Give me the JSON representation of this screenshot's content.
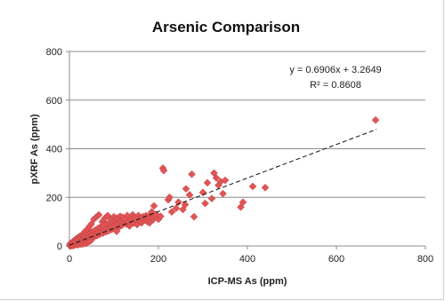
{
  "chart_data": {
    "type": "scatter",
    "title": "Arsenic Comparison",
    "xlabel": "ICP-MS As (ppm)",
    "ylabel": "pXRF As (ppm)",
    "xlim": [
      0,
      800
    ],
    "ylim": [
      0,
      800
    ],
    "xticks": [
      "0",
      "200",
      "400",
      "600",
      "800"
    ],
    "yticks": [
      "0",
      "200",
      "400",
      "600",
      "800"
    ],
    "grid": "horizontal",
    "legend": "none",
    "trendline": {
      "slope": 0.6906,
      "intercept": 3.2649,
      "equation_label": "y = 0.6906x + 3.2649",
      "r2_label": "R² = 0.8608",
      "x_range": [
        0,
        690
      ]
    },
    "marker_color": "#e05555",
    "series": [
      {
        "points": [
          [
            2,
            5
          ],
          [
            3,
            8
          ],
          [
            4,
            2
          ],
          [
            5,
            12
          ],
          [
            6,
            4
          ],
          [
            7,
            15
          ],
          [
            8,
            6
          ],
          [
            9,
            20
          ],
          [
            10,
            9
          ],
          [
            11,
            3
          ],
          [
            12,
            18
          ],
          [
            13,
            25
          ],
          [
            14,
            10
          ],
          [
            15,
            7
          ],
          [
            16,
            30
          ],
          [
            17,
            14
          ],
          [
            18,
            22
          ],
          [
            19,
            5
          ],
          [
            20,
            35
          ],
          [
            21,
            16
          ],
          [
            22,
            28
          ],
          [
            23,
            12
          ],
          [
            24,
            40
          ],
          [
            25,
            20
          ],
          [
            26,
            8
          ],
          [
            27,
            33
          ],
          [
            28,
            45
          ],
          [
            29,
            18
          ],
          [
            30,
            25
          ],
          [
            31,
            50
          ],
          [
            32,
            15
          ],
          [
            33,
            38
          ],
          [
            34,
            22
          ],
          [
            35,
            60
          ],
          [
            36,
            28
          ],
          [
            37,
            42
          ],
          [
            38,
            12
          ],
          [
            39,
            55
          ],
          [
            40,
            30
          ],
          [
            41,
            70
          ],
          [
            42,
            20
          ],
          [
            43,
            48
          ],
          [
            44,
            35
          ],
          [
            45,
            80
          ],
          [
            46,
            25
          ],
          [
            47,
            52
          ],
          [
            48,
            40
          ],
          [
            49,
            90
          ],
          [
            50,
            32
          ],
          [
            52,
            58
          ],
          [
            54,
            45
          ],
          [
            55,
            110
          ],
          [
            56,
            38
          ],
          [
            58,
            65
          ],
          [
            60,
            50
          ],
          [
            61,
            120
          ],
          [
            62,
            42
          ],
          [
            64,
            72
          ],
          [
            65,
            55
          ],
          [
            66,
            128
          ],
          [
            68,
            48
          ],
          [
            70,
            78
          ],
          [
            72,
            60
          ],
          [
            74,
            100
          ],
          [
            75,
            52
          ],
          [
            76,
            85
          ],
          [
            78,
            65
          ],
          [
            80,
            115
          ],
          [
            82,
            58
          ],
          [
            84,
            90
          ],
          [
            85,
            70
          ],
          [
            86,
            125
          ],
          [
            88,
            62
          ],
          [
            90,
            95
          ],
          [
            92,
            75
          ],
          [
            94,
            110
          ],
          [
            95,
            68
          ],
          [
            96,
            100
          ],
          [
            98,
            80
          ],
          [
            100,
            120
          ],
          [
            102,
            72
          ],
          [
            104,
            105
          ],
          [
            105,
            88
          ],
          [
            106,
            60
          ],
          [
            108,
            115
          ],
          [
            110,
            92
          ],
          [
            112,
            78
          ],
          [
            114,
            122
          ],
          [
            115,
            98
          ],
          [
            118,
            85
          ],
          [
            120,
            118
          ],
          [
            122,
            95
          ],
          [
            125,
            108
          ],
          [
            128,
            90
          ],
          [
            130,
            125
          ],
          [
            132,
            100
          ],
          [
            135,
            82
          ],
          [
            138,
            115
          ],
          [
            140,
            105
          ],
          [
            142,
            128
          ],
          [
            145,
            95
          ],
          [
            148,
            118
          ],
          [
            150,
            110
          ],
          [
            152,
            88
          ],
          [
            155,
            125
          ],
          [
            158,
            102
          ],
          [
            160,
            115
          ],
          [
            162,
            95
          ],
          [
            165,
            120
          ],
          [
            168,
            105
          ],
          [
            170,
            112
          ],
          [
            172,
            125
          ],
          [
            175,
            100
          ],
          [
            178,
            118
          ],
          [
            180,
            95
          ],
          [
            182,
            130
          ],
          [
            185,
            115
          ],
          [
            188,
            108
          ],
          [
            190,
            125
          ],
          [
            195,
            130
          ],
          [
            200,
            110
          ],
          [
            205,
            122
          ],
          [
            185,
            140
          ],
          [
            190,
            165
          ],
          [
            210,
            320
          ],
          [
            212,
            310
          ],
          [
            222,
            190
          ],
          [
            225,
            200
          ],
          [
            230,
            140
          ],
          [
            240,
            155
          ],
          [
            245,
            180
          ],
          [
            255,
            150
          ],
          [
            260,
            170
          ],
          [
            262,
            235
          ],
          [
            270,
            210
          ],
          [
            275,
            295
          ],
          [
            280,
            120
          ],
          [
            300,
            220
          ],
          [
            305,
            175
          ],
          [
            310,
            260
          ],
          [
            320,
            195
          ],
          [
            325,
            300
          ],
          [
            330,
            280
          ],
          [
            335,
            250
          ],
          [
            340,
            265
          ],
          [
            345,
            215
          ],
          [
            350,
            270
          ],
          [
            385,
            160
          ],
          [
            390,
            180
          ],
          [
            412,
            245
          ],
          [
            440,
            240
          ],
          [
            688,
            518
          ],
          [
            1,
            1
          ],
          [
            2,
            10
          ],
          [
            3,
            0
          ],
          [
            4,
            6
          ],
          [
            5,
            3
          ],
          [
            6,
            9
          ],
          [
            7,
            1
          ],
          [
            8,
            12
          ],
          [
            9,
            4
          ],
          [
            10,
            14
          ],
          [
            12,
            6
          ],
          [
            14,
            18
          ],
          [
            16,
            8
          ],
          [
            18,
            12
          ],
          [
            20,
            5
          ],
          [
            22,
            14
          ],
          [
            24,
            9
          ],
          [
            26,
            16
          ],
          [
            28,
            11
          ],
          [
            30,
            8
          ],
          [
            32,
            20
          ],
          [
            34,
            14
          ],
          [
            36,
            10
          ],
          [
            38,
            24
          ],
          [
            40,
            15
          ],
          [
            42,
            32
          ],
          [
            44,
            18
          ],
          [
            46,
            26
          ],
          [
            48,
            22
          ],
          [
            50,
            40
          ]
        ]
      }
    ]
  }
}
